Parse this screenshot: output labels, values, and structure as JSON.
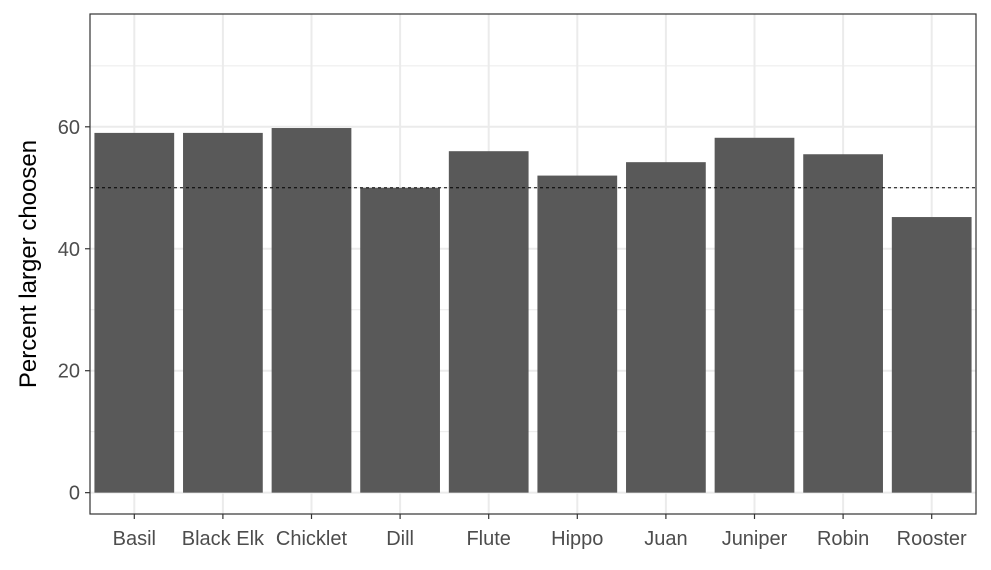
{
  "chart_data": {
    "type": "bar",
    "categories": [
      "Basil",
      "Black Elk",
      "Chicklet",
      "Dill",
      "Flute",
      "Hippo",
      "Juan",
      "Juniper",
      "Robin",
      "Rooster"
    ],
    "values": [
      59,
      59,
      59.8,
      50,
      56,
      52,
      54.2,
      58.2,
      55.5,
      45.2
    ],
    "ylabel": "Percent larger choosen",
    "xlabel": "",
    "ylim": [
      -3.5,
      78.5
    ],
    "yticks": [
      0,
      20,
      40,
      60
    ],
    "reference_line": {
      "y": 50,
      "style": "dashed"
    },
    "bar_color": "#595959",
    "grid": true,
    "grid_color": "#ebebeb",
    "panel_border_color": "#333333"
  }
}
